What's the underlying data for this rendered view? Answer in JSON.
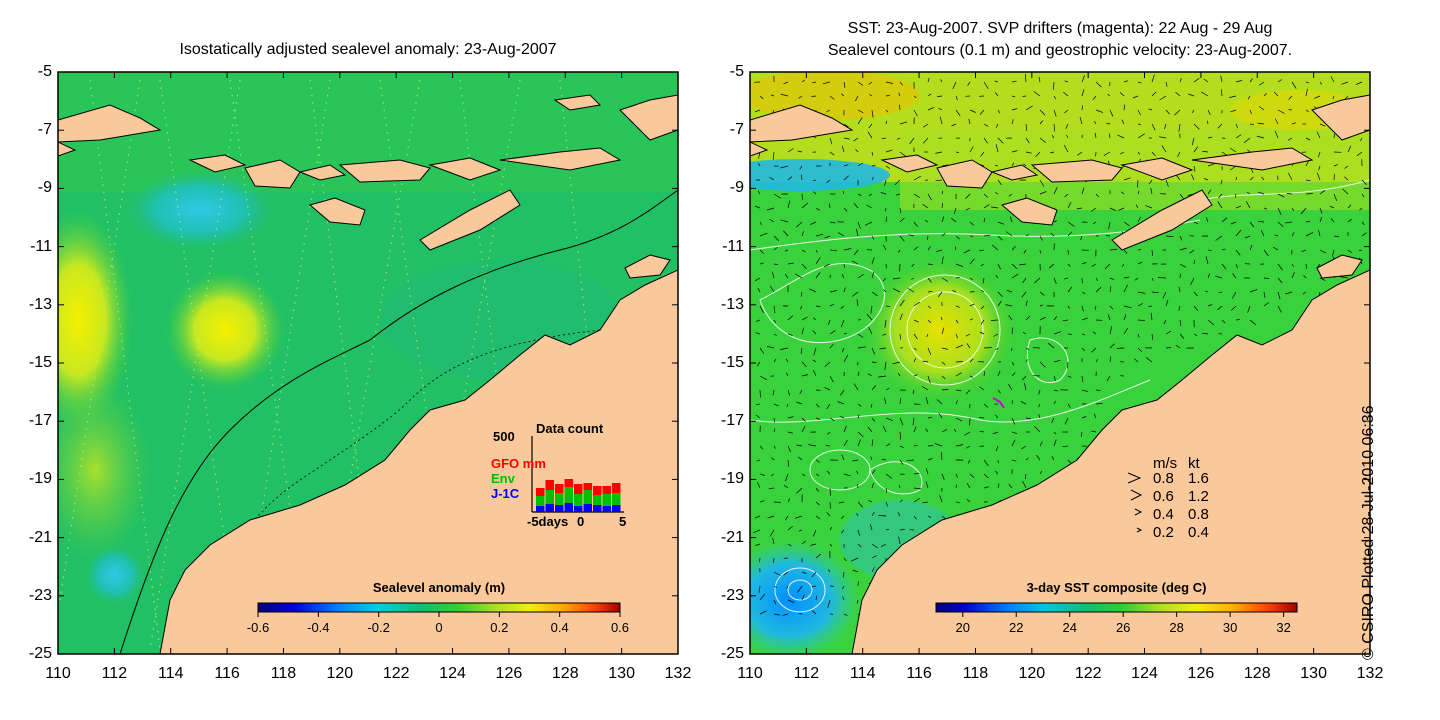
{
  "left_panel": {
    "title": "Isostatically adjusted sealevel anomaly: 23-Aug-2007",
    "colorbar": {
      "title": "Sealevel anomaly (m)",
      "ticks": [
        "-0.6",
        "-0.4",
        "-0.2",
        "0",
        "0.2",
        "0.4",
        "0.6"
      ],
      "range": [
        -0.6,
        0.6
      ]
    },
    "inset": {
      "title": "Data count",
      "y_max_label": "500",
      "series": [
        {
          "name": "GFO",
          "color": "#ff0000"
        },
        {
          "name": "Env",
          "color": "#00c000"
        },
        {
          "name": "J-1C",
          "color": "#0000ff"
        }
      ],
      "unit": "mm",
      "x_labels": [
        "-5days",
        "0",
        "5"
      ]
    }
  },
  "right_panel": {
    "title_line1": "SST: 23-Aug-2007. SVP drifters (magenta): 22 Aug - 29 Aug",
    "title_line2": "Sealevel contours (0.1 m) and geostrophic velocity: 23-Aug-2007.",
    "colorbar": {
      "title": "3-day SST composite (deg C)",
      "ticks": [
        "20",
        "22",
        "24",
        "26",
        "28",
        "30",
        "32"
      ],
      "range": [
        19,
        32.5
      ]
    },
    "velocity_legend": {
      "header_ms": "m/s",
      "header_kt": "kt",
      "rows": [
        {
          "ms": "0.8",
          "kt": "1.6"
        },
        {
          "ms": "0.6",
          "kt": "1.2"
        },
        {
          "ms": "0.4",
          "kt": "0.8"
        },
        {
          "ms": "0.2",
          "kt": "0.4"
        }
      ]
    }
  },
  "axes": {
    "x_ticks": [
      "110",
      "112",
      "114",
      "116",
      "118",
      "120",
      "122",
      "124",
      "126",
      "128",
      "130",
      "132"
    ],
    "y_ticks": [
      "-5",
      "-7",
      "-9",
      "-11",
      "-13",
      "-15",
      "-17",
      "-19",
      "-21",
      "-23",
      "-25"
    ],
    "lon_range": [
      110,
      132
    ],
    "lat_range": [
      -25,
      -5
    ]
  },
  "credit": "© CSIRO Plotted 28-Jul-2010 06:36",
  "colors": {
    "land": "#f9c89b",
    "ocean_left": "#22c064",
    "ocean_right": "#3ad23c",
    "contour_left": "#000000",
    "contour_right": "#ffffff",
    "drifter": "#d000d0"
  }
}
